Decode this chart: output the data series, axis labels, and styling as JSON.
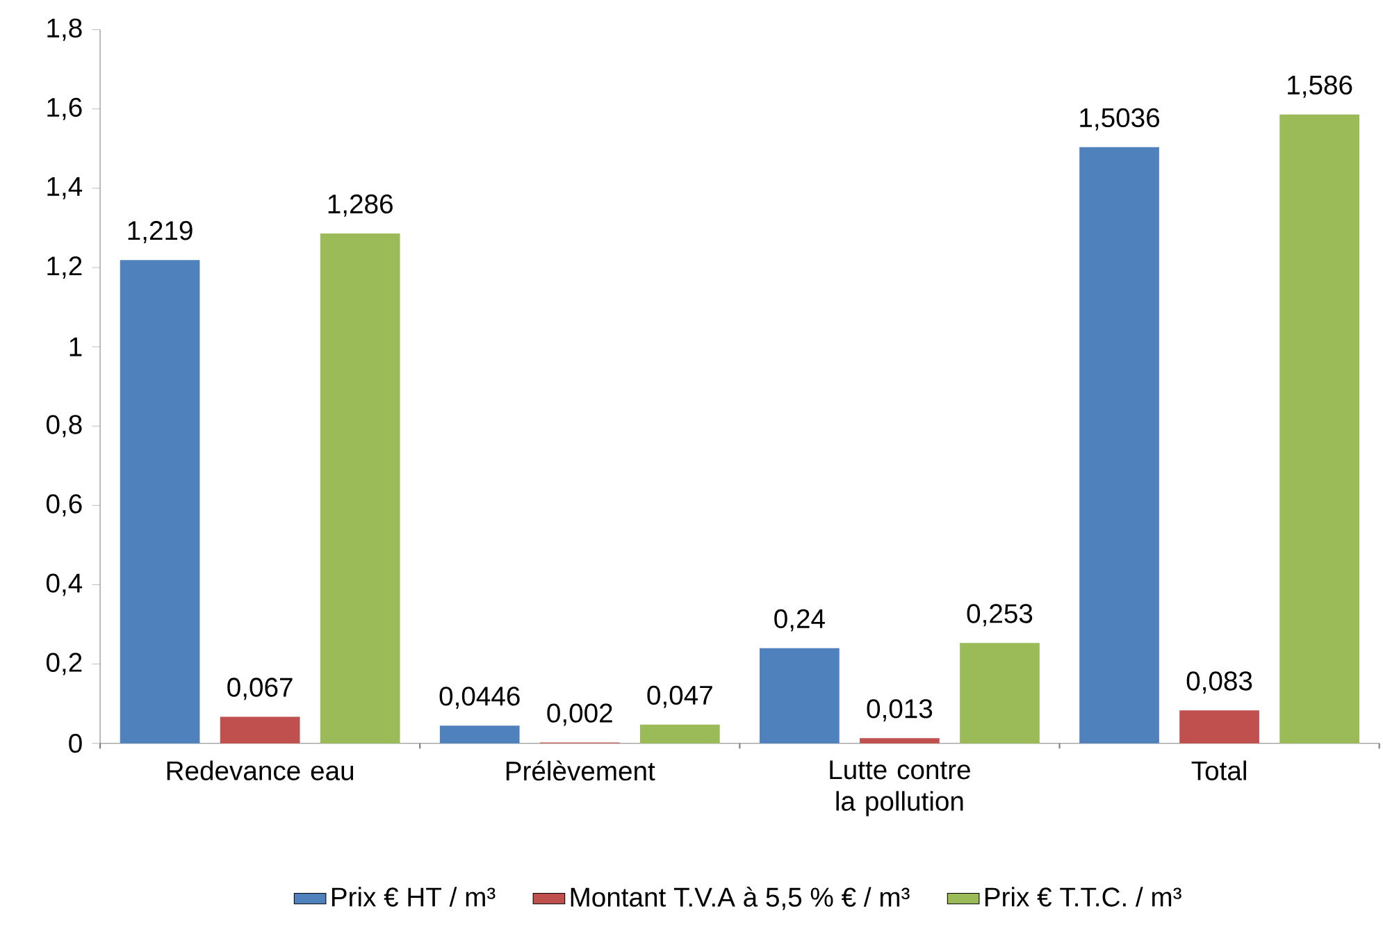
{
  "chart_data": {
    "type": "bar",
    "categories": [
      "Redevance eau",
      "Prélèvement",
      "Lutte contre la pollution",
      "Total"
    ],
    "series": [
      {
        "name": "Prix € HT / m³",
        "color": "#4f81bd",
        "values": [
          1.219,
          0.0446,
          0.24,
          1.5036
        ],
        "value_labels": [
          "1,219",
          "0,0446",
          "0,24",
          "1,5036"
        ]
      },
      {
        "name": "Montant T.V.A à 5,5 % € / m³",
        "color": "#c0504d",
        "values": [
          0.067,
          0.002,
          0.013,
          0.083
        ],
        "value_labels": [
          "0,067",
          "0,002",
          "0,013",
          "0,083"
        ]
      },
      {
        "name": "Prix € T.T.C. / m³",
        "color": "#9bbb59",
        "values": [
          1.286,
          0.047,
          0.253,
          1.586
        ],
        "value_labels": [
          "1,286",
          "0,047",
          "0,253",
          "1,586"
        ]
      }
    ],
    "ylim": [
      0,
      1.8
    ],
    "yticks": [
      0,
      {
        "value": 0.2,
        "label": "0,2"
      },
      {
        "value": 0.4,
        "label": "0,4"
      },
      {
        "value": 0.6,
        "label": "0,6"
      },
      {
        "value": 0.8,
        "label": "0,8"
      },
      1,
      {
        "value": 1.2,
        "label": "1,2"
      },
      {
        "value": 1.4,
        "label": "1,4"
      },
      {
        "value": 1.6,
        "label": "1,6"
      },
      {
        "value": 1.8,
        "label": "1,8"
      }
    ],
    "grid": false,
    "legend": "bottom"
  }
}
